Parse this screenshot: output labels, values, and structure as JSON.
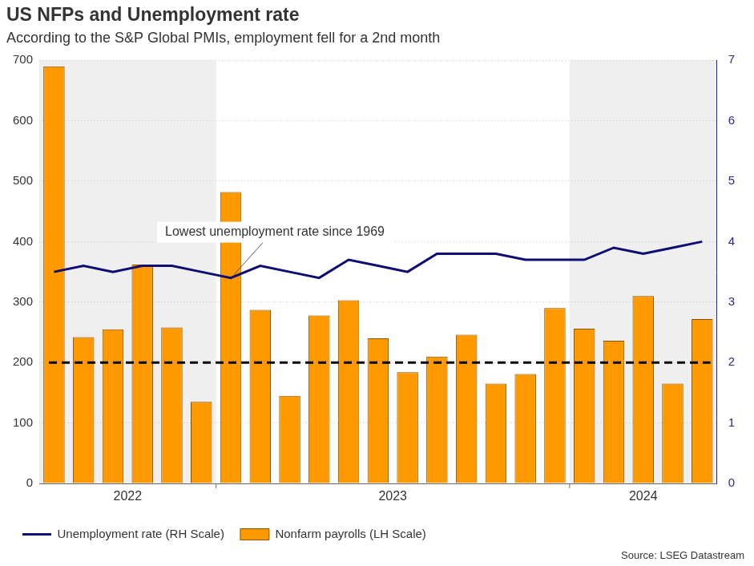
{
  "chart_data": {
    "type": "bar",
    "title": "US NFPs and Unemployment rate",
    "subtitle": "According to the S&P Global PMIs, employment fell for a 2nd month",
    "source": "Source: LSEG Datastream",
    "categories": [
      null,
      null,
      null,
      null,
      null,
      null,
      null,
      null,
      null,
      null,
      null,
      null,
      null,
      null,
      null,
      null,
      null,
      null,
      null,
      null,
      null,
      null,
      null
    ],
    "periods": [
      {
        "label": "2022",
        "count": 6
      },
      {
        "label": "2023",
        "count": 12
      },
      {
        "label": "2024",
        "count": 5
      }
    ],
    "series": [
      {
        "name": "Nonfarm payrolls (LH Scale)",
        "type": "bar",
        "color": "#ff9900",
        "values": [
          690,
          242,
          255,
          362,
          258,
          135,
          482,
          287,
          145,
          278,
          303,
          240,
          184,
          210,
          246,
          165,
          181,
          290,
          256,
          236,
          310,
          165,
          272
        ]
      },
      {
        "name": "Unemployment rate (RH Scale)",
        "type": "line",
        "color": "#0d0d73",
        "axis": "y2",
        "values": [
          3.5,
          3.6,
          3.5,
          3.6,
          3.6,
          3.5,
          3.4,
          3.6,
          3.5,
          3.4,
          3.7,
          3.6,
          3.5,
          3.8,
          3.8,
          3.8,
          3.7,
          3.7,
          3.7,
          3.9,
          3.8,
          3.9,
          4.0
        ]
      }
    ],
    "ylim": [
      0,
      700
    ],
    "yticks": [
      0,
      100,
      200,
      300,
      400,
      500,
      600,
      700
    ],
    "y2lim": [
      0,
      7
    ],
    "y2ticks": [
      0,
      1,
      2,
      3,
      4,
      5,
      6,
      7
    ],
    "reference_lines": [
      {
        "value": 200,
        "line_style": "dashed"
      }
    ],
    "annotations": [
      {
        "text": "Lowest unemployment rate since 1969",
        "index": 6,
        "series": 1
      }
    ],
    "grid": true,
    "legend": "bottom-left"
  }
}
